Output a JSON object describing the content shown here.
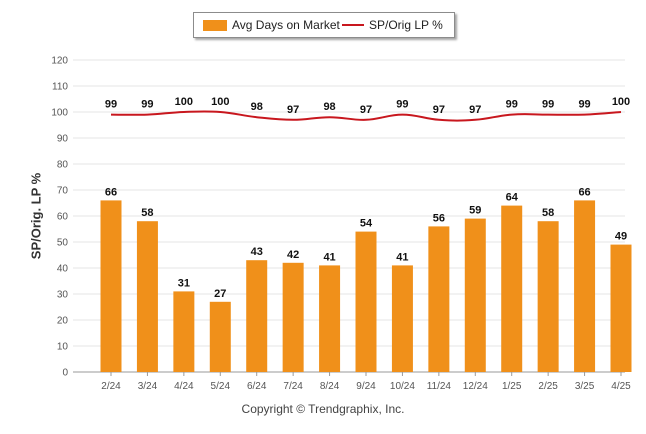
{
  "legend": {
    "bar_label": "Avg Days on Market",
    "line_label": "SP/Orig LP %"
  },
  "ylabel": "SP/Orig. LP %",
  "copyright": "Copyright © Trendgraphix, Inc.",
  "colors": {
    "bar": "#f0901a",
    "line": "#c8171e",
    "grid": "#e6e6e6",
    "axis": "#9a9a9a"
  },
  "chart_data": {
    "type": "bar",
    "categories": [
      "2/24",
      "3/24",
      "4/24",
      "5/24",
      "6/24",
      "7/24",
      "8/24",
      "9/24",
      "10/24",
      "11/24",
      "12/24",
      "1/25",
      "2/25",
      "3/25",
      "4/25"
    ],
    "series": [
      {
        "name": "Avg Days on Market",
        "type": "bar",
        "values": [
          66,
          58,
          31,
          27,
          43,
          42,
          41,
          54,
          41,
          56,
          59,
          64,
          58,
          66,
          49
        ]
      },
      {
        "name": "SP/Orig LP %",
        "type": "line",
        "values": [
          99,
          99,
          100,
          100,
          98,
          97,
          98,
          97,
          99,
          97,
          97,
          99,
          99,
          99,
          100
        ]
      }
    ],
    "ylabel": "SP/Orig. LP %",
    "ylim": [
      0,
      120
    ],
    "yticks": [
      0,
      10,
      20,
      30,
      40,
      50,
      60,
      70,
      80,
      90,
      100,
      110,
      120
    ],
    "grid": true,
    "legend_position": "top"
  }
}
